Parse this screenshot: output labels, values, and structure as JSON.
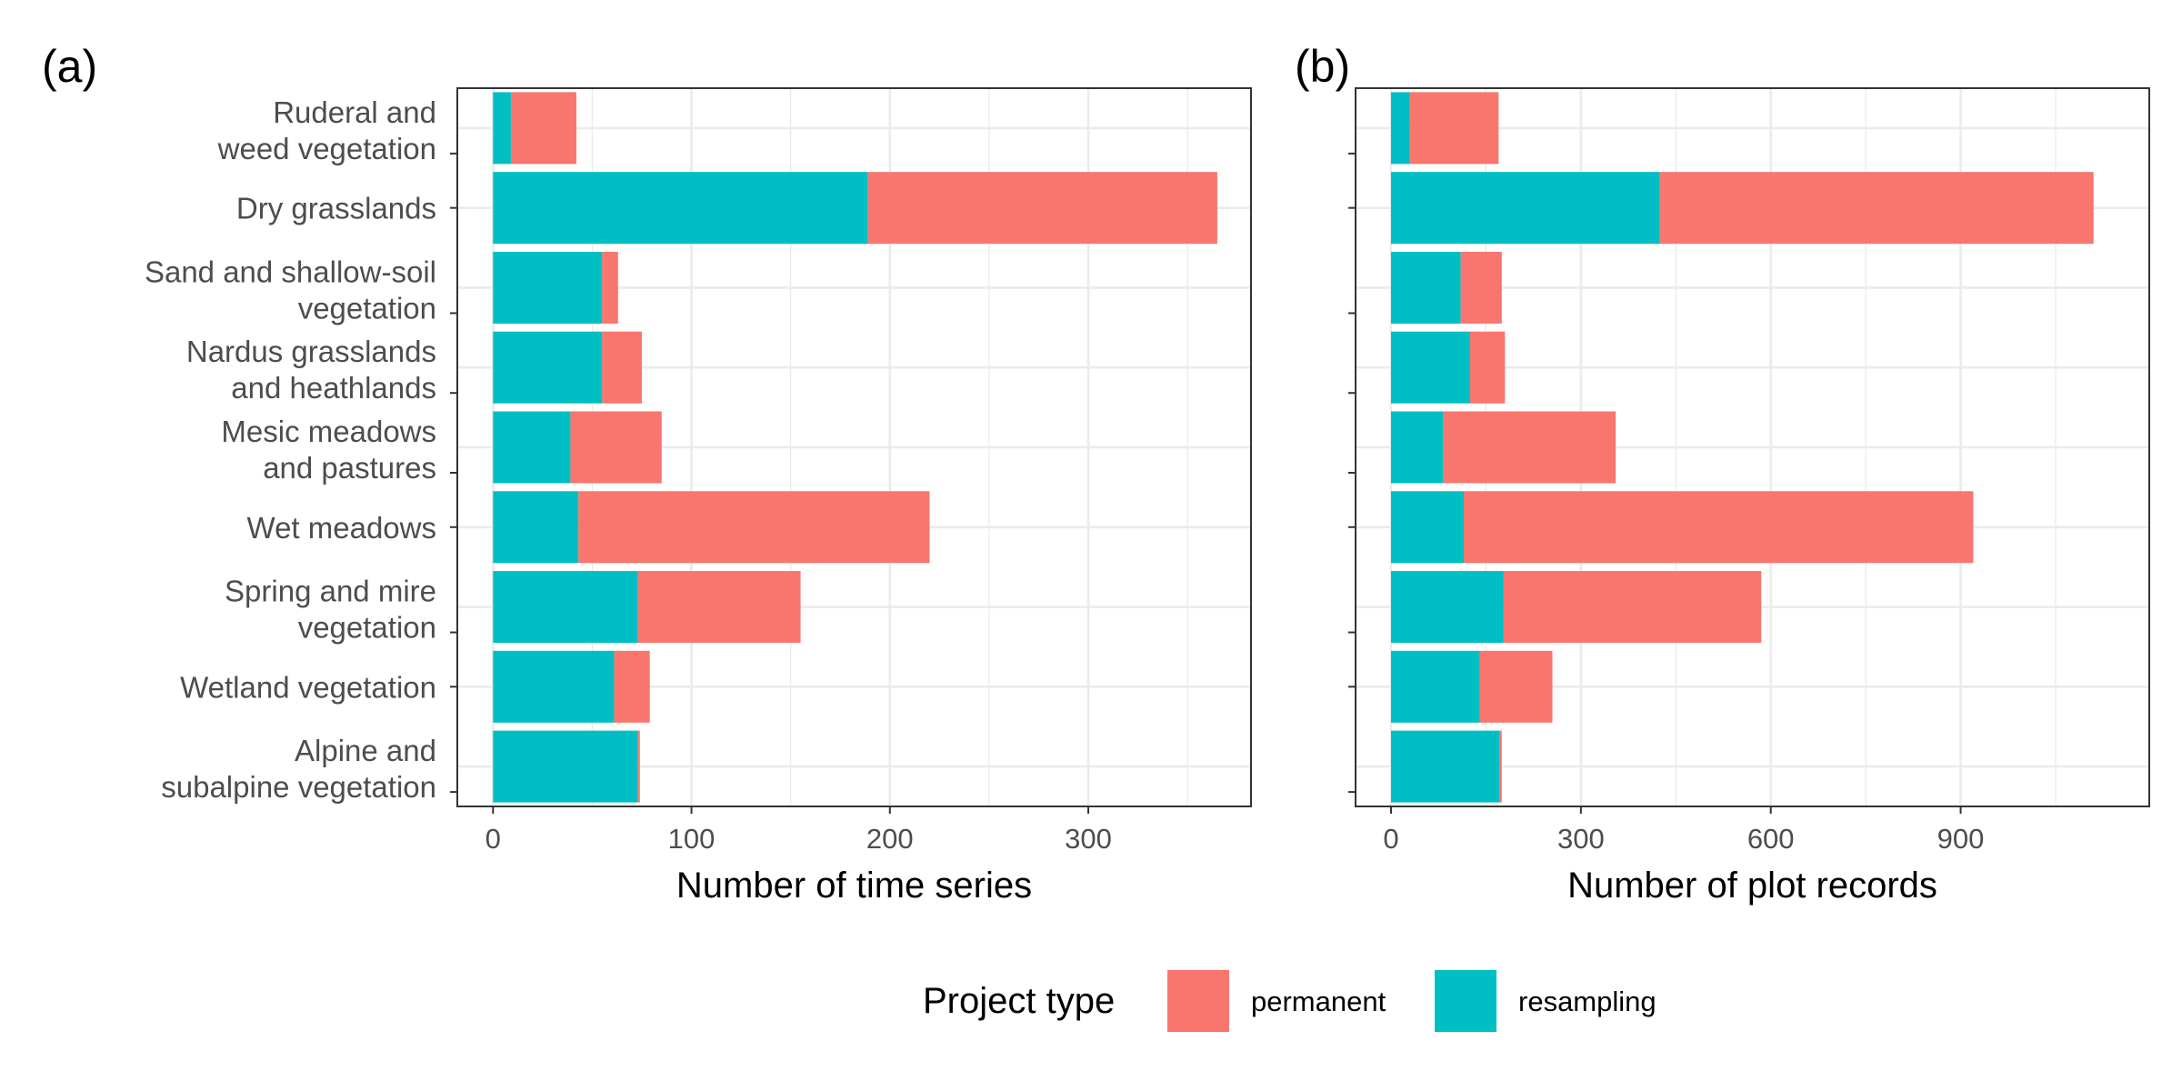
{
  "colors": {
    "permanent": "#F8766D",
    "resampling": "#00BFC4",
    "grid": "#EBEBEB",
    "panel_border": "#333333",
    "tick_text": "#4d4d4d"
  },
  "chart_data": [
    {
      "type": "bar",
      "orientation": "horizontal",
      "stacked": true,
      "panel_label": "(a)",
      "xlabel": "Number of time series",
      "ylabel": "",
      "xlim": [
        -18,
        382
      ],
      "xticks": [
        "0",
        "100",
        "200",
        "300"
      ],
      "xtick_values": [
        0,
        100,
        200,
        300
      ],
      "grid": true,
      "categories": [
        [
          "Ruderal and",
          "weed vegetation"
        ],
        [
          "Dry grasslands"
        ],
        [
          "Sand and shallow-soil",
          "vegetation"
        ],
        [
          "Nardus grasslands",
          "and heathlands"
        ],
        [
          "Mesic meadows",
          "and pastures"
        ],
        [
          "Wet meadows"
        ],
        [
          "Spring and mire",
          "vegetation"
        ],
        [
          "Wetland vegetation"
        ],
        [
          "Alpine and",
          "subalpine vegetation"
        ]
      ],
      "series": [
        {
          "name": "resampling",
          "values": [
            9,
            189,
            55,
            55,
            39,
            43,
            73,
            61,
            73
          ]
        },
        {
          "name": "permanent",
          "values": [
            33,
            176,
            8,
            20,
            46,
            177,
            82,
            18,
            1
          ]
        }
      ]
    },
    {
      "type": "bar",
      "orientation": "horizontal",
      "stacked": true,
      "panel_label": "(b)",
      "xlabel": "Number of plot records",
      "ylabel": "",
      "xlim": [
        -56,
        1198
      ],
      "xticks": [
        "0",
        "300",
        "600",
        "900"
      ],
      "xtick_values": [
        0,
        300,
        600,
        900
      ],
      "grid": true,
      "categories": [
        [
          "Ruderal and",
          "weed vegetation"
        ],
        [
          "Dry grasslands"
        ],
        [
          "Sand and shallow-soil",
          "vegetation"
        ],
        [
          "Nardus grasslands",
          "and heathlands"
        ],
        [
          "Mesic meadows",
          "and pastures"
        ],
        [
          "Wet meadows"
        ],
        [
          "Spring and mire",
          "vegetation"
        ],
        [
          "Wetland vegetation"
        ],
        [
          "Alpine and",
          "subalpine vegetation"
        ]
      ],
      "series": [
        {
          "name": "resampling",
          "values": [
            30,
            425,
            110,
            125,
            82,
            115,
            178,
            140,
            172
          ]
        },
        {
          "name": "permanent",
          "values": [
            140,
            685,
            65,
            55,
            273,
            805,
            407,
            115,
            3
          ]
        }
      ]
    }
  ],
  "legend": {
    "title": "Project type",
    "placement": "bottom",
    "items": [
      {
        "label": "permanent",
        "color": "#F8766D"
      },
      {
        "label": "resampling",
        "color": "#00BFC4"
      }
    ]
  }
}
